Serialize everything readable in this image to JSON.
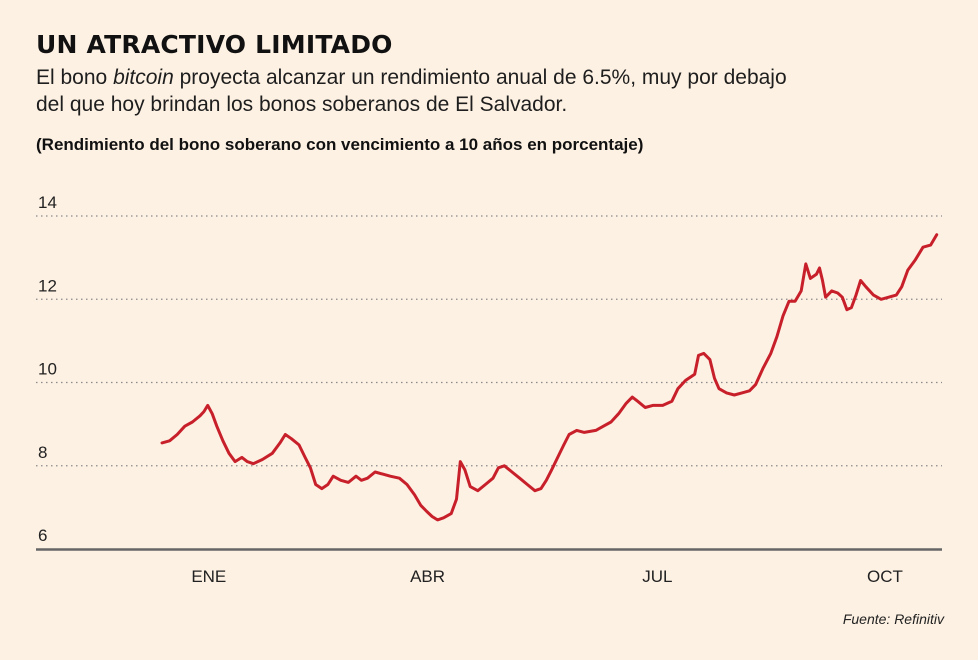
{
  "header": {
    "title": "UN ATRACTIVO LIMITADO",
    "subtitle_before": "El bono ",
    "subtitle_em": "bitcoin",
    "subtitle_after": " proyecta alcanzar un rendimiento anual de 6.5%, muy por debajo del que hoy brindan los bonos soberanos de El Salvador.",
    "unit_label": "(Rendimiento del bono soberano con vencimiento a 10 años en porcentaje)"
  },
  "footer": {
    "source": "Fuente: Refinitiv"
  },
  "colors": {
    "background": "#fdf1e3",
    "line": "#c8202b",
    "grid": "#8a8a8a",
    "axis": "#666666"
  },
  "chart_data": {
    "type": "line",
    "title": "",
    "xlabel": "",
    "ylabel": "",
    "ylim": [
      6,
      14
    ],
    "yticks": [
      6,
      8,
      10,
      12,
      14
    ],
    "xtick_labels": [
      "ENE",
      "ABR",
      "JUL",
      "OCT"
    ],
    "xtick_positions": [
      0.115,
      2.99,
      6.01,
      9.0
    ],
    "xlim": [
      -0.5,
      9.75
    ],
    "grid": "horizontal-dotted",
    "legend": "none",
    "series": [
      {
        "name": "",
        "points": [
          [
            -0.5,
            8.55
          ],
          [
            -0.4,
            8.6
          ],
          [
            -0.3,
            8.75
          ],
          [
            -0.2,
            8.95
          ],
          [
            -0.1,
            9.05
          ],
          [
            0.0,
            9.2
          ],
          [
            0.05,
            9.3
          ],
          [
            0.1,
            9.45
          ],
          [
            0.16,
            9.25
          ],
          [
            0.22,
            8.95
          ],
          [
            0.3,
            8.6
          ],
          [
            0.38,
            8.3
          ],
          [
            0.46,
            8.1
          ],
          [
            0.55,
            8.2
          ],
          [
            0.62,
            8.1
          ],
          [
            0.7,
            8.05
          ],
          [
            0.82,
            8.15
          ],
          [
            0.95,
            8.3
          ],
          [
            1.05,
            8.55
          ],
          [
            1.12,
            8.75
          ],
          [
            1.2,
            8.65
          ],
          [
            1.3,
            8.5
          ],
          [
            1.38,
            8.2
          ],
          [
            1.45,
            7.95
          ],
          [
            1.52,
            7.55
          ],
          [
            1.6,
            7.45
          ],
          [
            1.68,
            7.55
          ],
          [
            1.75,
            7.75
          ],
          [
            1.85,
            7.65
          ],
          [
            1.95,
            7.6
          ],
          [
            2.05,
            7.75
          ],
          [
            2.12,
            7.65
          ],
          [
            2.2,
            7.7
          ],
          [
            2.3,
            7.85
          ],
          [
            2.4,
            7.8
          ],
          [
            2.5,
            7.75
          ],
          [
            2.62,
            7.7
          ],
          [
            2.72,
            7.55
          ],
          [
            2.82,
            7.3
          ],
          [
            2.9,
            7.05
          ],
          [
            2.98,
            6.9
          ],
          [
            3.05,
            6.78
          ],
          [
            3.12,
            6.7
          ],
          [
            3.2,
            6.75
          ],
          [
            3.3,
            6.85
          ],
          [
            3.37,
            7.2
          ],
          [
            3.42,
            8.1
          ],
          [
            3.48,
            7.9
          ],
          [
            3.55,
            7.5
          ],
          [
            3.65,
            7.4
          ],
          [
            3.75,
            7.55
          ],
          [
            3.85,
            7.7
          ],
          [
            3.92,
            7.95
          ],
          [
            4.0,
            8.0
          ],
          [
            4.1,
            7.85
          ],
          [
            4.2,
            7.7
          ],
          [
            4.3,
            7.55
          ],
          [
            4.4,
            7.4
          ],
          [
            4.48,
            7.45
          ],
          [
            4.55,
            7.65
          ],
          [
            4.62,
            7.9
          ],
          [
            4.7,
            8.2
          ],
          [
            4.78,
            8.5
          ],
          [
            4.85,
            8.75
          ],
          [
            4.95,
            8.85
          ],
          [
            5.05,
            8.8
          ],
          [
            5.2,
            8.85
          ],
          [
            5.3,
            8.95
          ],
          [
            5.4,
            9.05
          ],
          [
            5.5,
            9.25
          ],
          [
            5.6,
            9.5
          ],
          [
            5.68,
            9.65
          ],
          [
            5.75,
            9.55
          ],
          [
            5.85,
            9.4
          ],
          [
            5.95,
            9.45
          ],
          [
            6.08,
            9.45
          ],
          [
            6.2,
            9.55
          ],
          [
            6.28,
            9.85
          ],
          [
            6.38,
            10.05
          ],
          [
            6.5,
            10.2
          ],
          [
            6.55,
            10.65
          ],
          [
            6.62,
            10.7
          ],
          [
            6.7,
            10.55
          ],
          [
            6.76,
            10.1
          ],
          [
            6.82,
            9.85
          ],
          [
            6.92,
            9.75
          ],
          [
            7.02,
            9.7
          ],
          [
            7.12,
            9.75
          ],
          [
            7.22,
            9.8
          ],
          [
            7.3,
            9.95
          ],
          [
            7.4,
            10.35
          ],
          [
            7.5,
            10.7
          ],
          [
            7.58,
            11.1
          ],
          [
            7.66,
            11.6
          ],
          [
            7.74,
            11.95
          ],
          [
            7.82,
            11.95
          ],
          [
            7.9,
            12.2
          ],
          [
            7.96,
            12.85
          ],
          [
            8.02,
            12.5
          ],
          [
            8.1,
            12.6
          ],
          [
            8.14,
            12.75
          ],
          [
            8.18,
            12.45
          ],
          [
            8.22,
            12.05
          ],
          [
            8.3,
            12.2
          ],
          [
            8.38,
            12.15
          ],
          [
            8.44,
            12.05
          ],
          [
            8.5,
            11.75
          ],
          [
            8.56,
            11.8
          ],
          [
            8.62,
            12.1
          ],
          [
            8.68,
            12.45
          ],
          [
            8.75,
            12.3
          ],
          [
            8.85,
            12.1
          ],
          [
            8.95,
            12.0
          ],
          [
            9.05,
            12.05
          ],
          [
            9.15,
            12.1
          ],
          [
            9.22,
            12.3
          ],
          [
            9.3,
            12.7
          ],
          [
            9.4,
            12.95
          ],
          [
            9.5,
            13.25
          ],
          [
            9.6,
            13.3
          ],
          [
            9.68,
            13.55
          ]
        ]
      }
    ]
  }
}
